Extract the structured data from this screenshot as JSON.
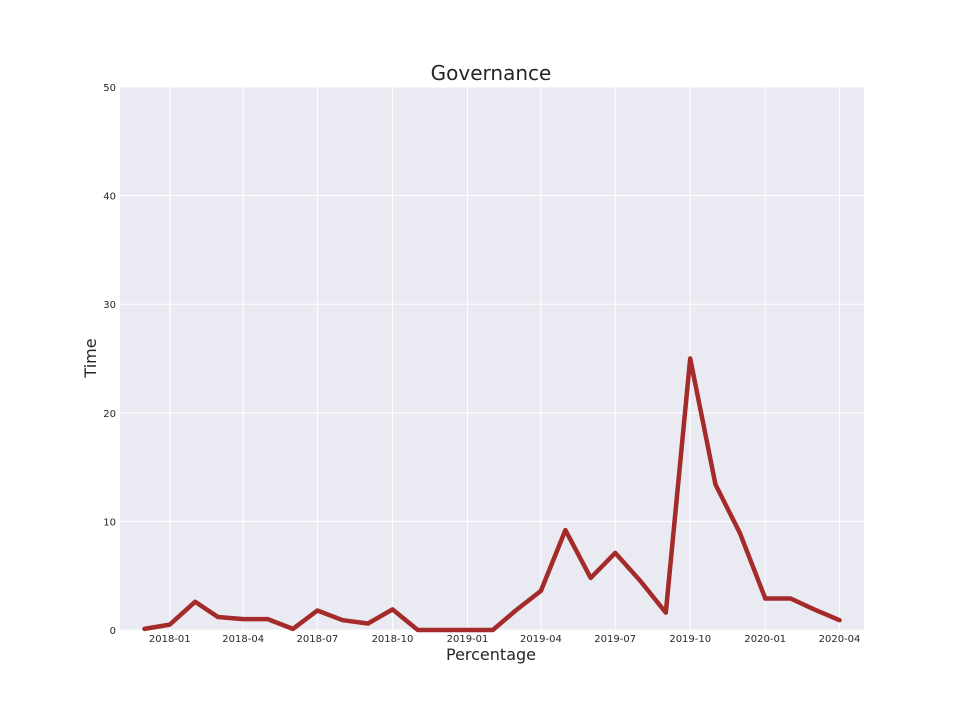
{
  "chart_data": {
    "type": "line",
    "title": "Governance",
    "xlabel": "Percentage",
    "ylabel": "Time",
    "ylim": [
      0,
      50
    ],
    "xlim": [
      "2017-11-01",
      "2020-05-01"
    ],
    "grid": true,
    "background": "#eaeaf2",
    "yticks": [
      0,
      10,
      20,
      30,
      40,
      50
    ],
    "xticks": [
      "2018-01",
      "2018-04",
      "2018-07",
      "2018-10",
      "2019-01",
      "2019-04",
      "2019-07",
      "2019-10",
      "2020-01",
      "2020-04"
    ],
    "series": [
      {
        "color": "#a52a2a",
        "x": [
          "2017-12-01",
          "2018-01-01",
          "2018-02-01",
          "2018-03-01",
          "2018-04-01",
          "2018-05-01",
          "2018-06-01",
          "2018-07-01",
          "2018-08-01",
          "2018-09-01",
          "2018-10-01",
          "2018-11-01",
          "2018-12-01",
          "2019-01-01",
          "2019-02-01",
          "2019-03-01",
          "2019-04-01",
          "2019-05-01",
          "2019-06-01",
          "2019-07-01",
          "2019-08-01",
          "2019-09-01",
          "2019-10-01",
          "2019-11-01",
          "2019-12-01",
          "2020-01-01",
          "2020-02-01",
          "2020-03-01",
          "2020-04-01"
        ],
        "values": [
          0.1,
          0.5,
          2.6,
          1.2,
          1.0,
          1.0,
          0.1,
          1.8,
          0.9,
          0.6,
          1.9,
          0,
          0,
          0,
          0,
          1.8,
          3.6,
          9.2,
          4.8,
          7.1,
          4.5,
          1.6,
          25.0,
          13.4,
          8.9,
          2.9,
          2.9,
          1.9,
          0.9
        ]
      }
    ]
  }
}
